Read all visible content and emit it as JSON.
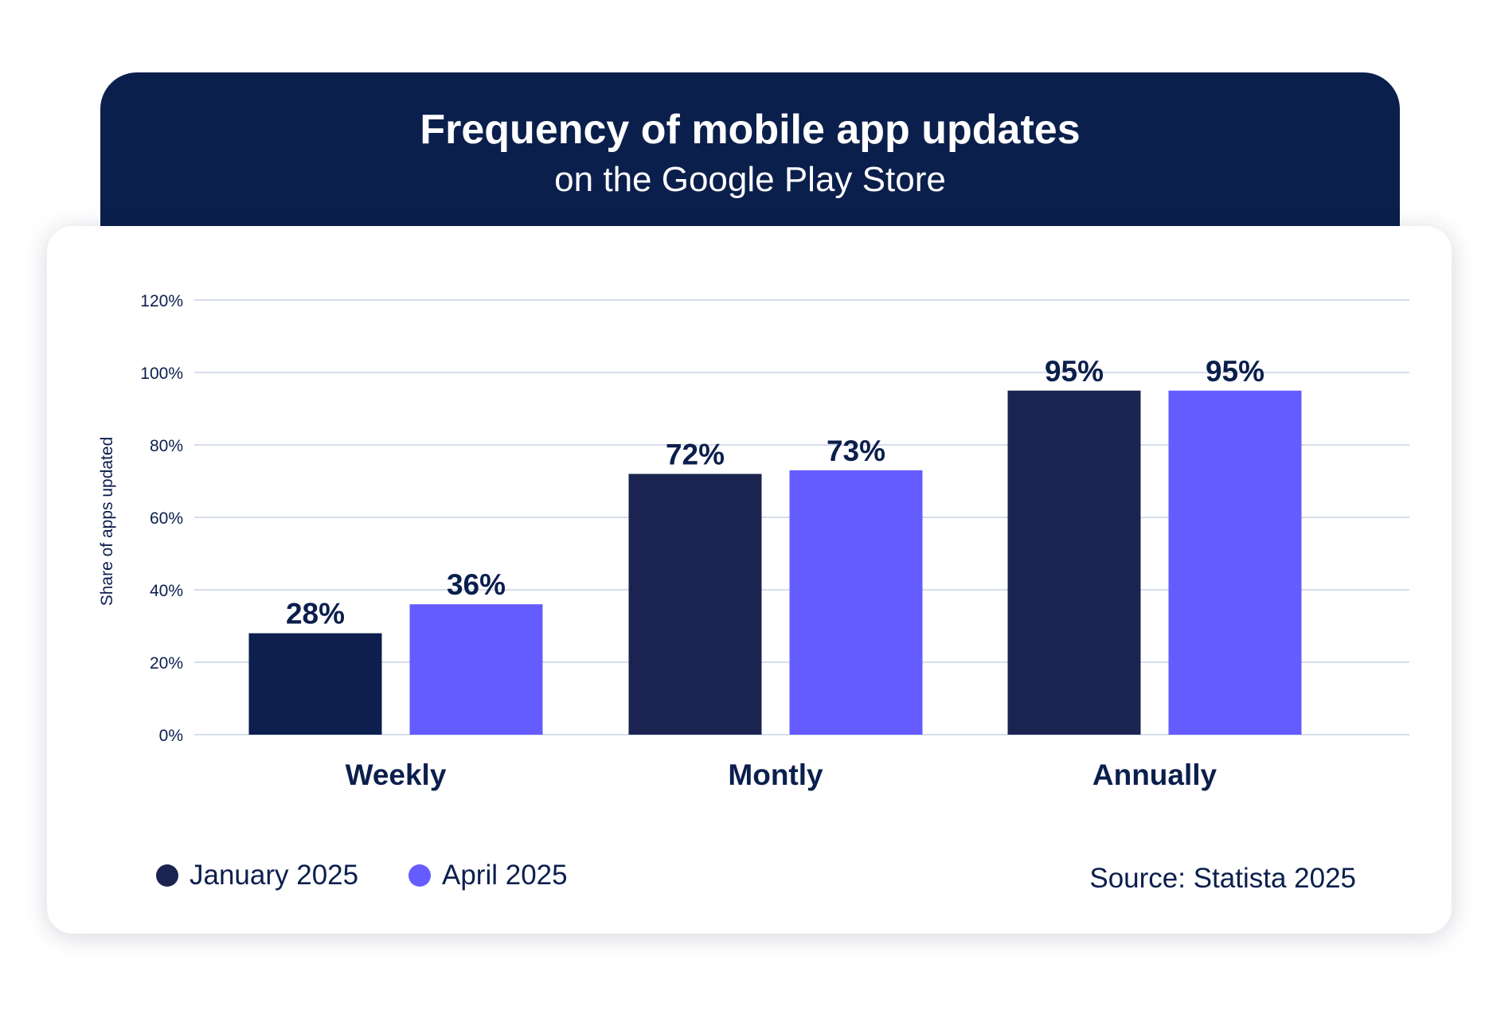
{
  "header": {
    "title": "Frequency of mobile app updates",
    "subtitle": "on the Google Play Store"
  },
  "chart_data": {
    "type": "bar",
    "title": "Frequency of mobile app updates",
    "subtitle": "on the Google Play Store",
    "ylabel": "Share of apps updated",
    "xlabel": "",
    "ylim": [
      0,
      120
    ],
    "yticks": [
      0,
      20,
      40,
      60,
      80,
      100,
      120
    ],
    "ytick_labels": [
      "0%",
      "20%",
      "40%",
      "60%",
      "80%",
      "100%",
      "120%"
    ],
    "grid": true,
    "legend_position": "bottom-left",
    "categories": [
      "Weekly",
      "Montly",
      "Annually"
    ],
    "series": [
      {
        "name": "January 2025",
        "values": [
          28,
          72,
          95
        ],
        "labels": [
          "28%",
          "72%",
          "95%"
        ],
        "color": "#0e2050"
      },
      {
        "name": "April 2025",
        "values": [
          36,
          73,
          95
        ],
        "labels": [
          "36%",
          "73%",
          "95%"
        ],
        "color": "#655cff"
      }
    ]
  },
  "source": "Source: Statista 2025",
  "colors": {
    "header": "#0b1f4c",
    "text": "#0b1f4d",
    "grid": "#d6ddeb"
  }
}
